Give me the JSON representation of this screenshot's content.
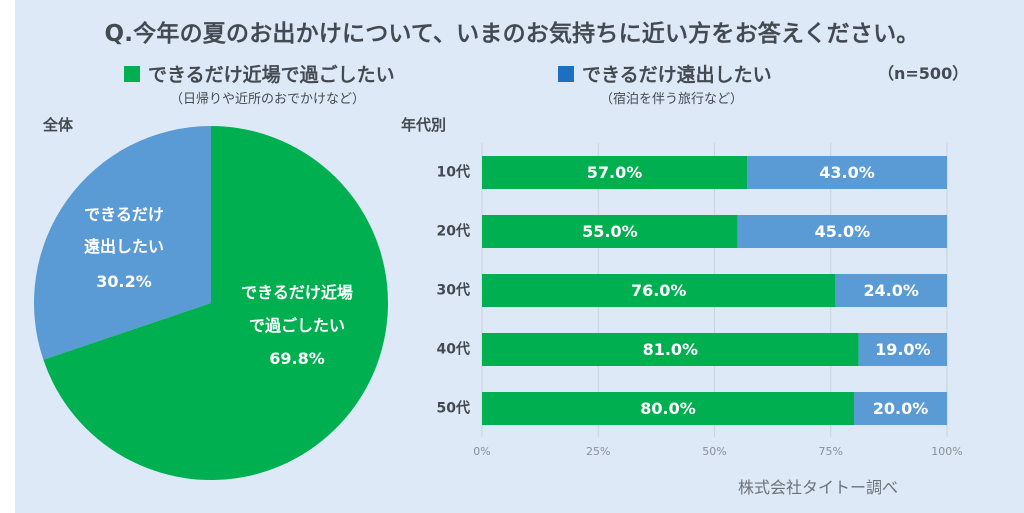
{
  "title": "Q.今年の夏のお出かけについて、いまのお気持ちに近い方をお答えください。",
  "legend": [
    {
      "label": "できるだけ近場で過ごしたい",
      "sublabel": "（日帰りや近所のおでかけなど）",
      "color": "#00b050"
    },
    {
      "label": "できるだけ遠出したい",
      "sublabel": "（宿泊を伴う旅行など）",
      "color": "#1f6fc1"
    }
  ],
  "sample_size": "（n=500）",
  "credit": "株式会社タイトー調べ",
  "chart_data": [
    {
      "type": "pie",
      "title": "全体",
      "slices": [
        {
          "label_line1": "できるだけ",
          "label_line2": "遠出したい",
          "value": 30.2,
          "value_label": "30.2%",
          "color": "#5b9bd5"
        },
        {
          "label_line1": "できるだけ近場",
          "label_line2": "で過ごしたい",
          "value": 69.8,
          "value_label": "69.8%",
          "color": "#00b050"
        }
      ]
    },
    {
      "type": "bar",
      "orientation": "horizontal",
      "stacked": true,
      "title": "年代別",
      "categories": [
        "10代",
        "20代",
        "30代",
        "40代",
        "50代"
      ],
      "series": [
        {
          "name": "できるだけ近場で過ごしたい",
          "color": "#00b050",
          "values": [
            57.0,
            55.0,
            76.0,
            81.0,
            80.0
          ],
          "labels": [
            "57.0%",
            "55.0%",
            "76.0%",
            "81.0%",
            "80.0%"
          ]
        },
        {
          "name": "できるだけ遠出したい",
          "color": "#5b9bd5",
          "values": [
            43.0,
            45.0,
            24.0,
            19.0,
            20.0
          ],
          "labels": [
            "43.0%",
            "45.0%",
            "24.0%",
            "19.0%",
            "20.0%"
          ]
        }
      ],
      "xlim": [
        0,
        100
      ],
      "xticks": [
        "0%",
        "25%",
        "50%",
        "75%",
        "100%"
      ],
      "grid": true
    }
  ]
}
